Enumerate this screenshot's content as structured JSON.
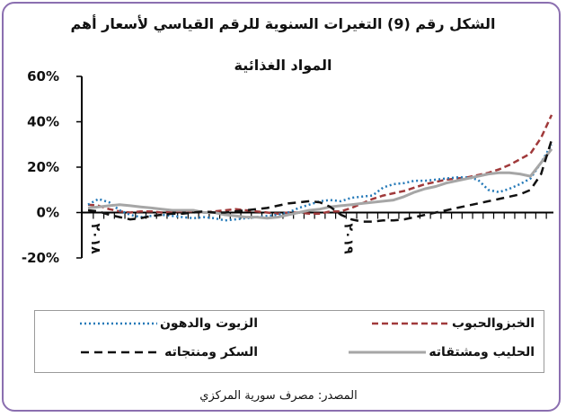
{
  "chart_data": {
    "type": "line",
    "title_line1": "الشكل رقم (9) التغيرات السنوية للرقم القياسي لأسعار أهم",
    "title_line2": "المواد الغذائية",
    "y_tick_labels": [
      "60%",
      "40%",
      "20%",
      "0%",
      "-20%"
    ],
    "y_ticks": [
      60,
      40,
      20,
      0,
      -20
    ],
    "ylim": [
      -20,
      60
    ],
    "x_tick_labels": [
      "٢٠١٨",
      "٢٠١٩"
    ],
    "x_label_index": [
      0,
      24
    ],
    "x_count": 45,
    "series": [
      {
        "name": "الخبزوالحبوب",
        "color": "#a0393a",
        "dash": "7,4",
        "values": [
          3.5,
          3.0,
          1.5,
          0.5,
          0.0,
          0.5,
          0.5,
          0.0,
          0.5,
          0.5,
          0.5,
          0.0,
          0.5,
          1.0,
          1.5,
          1.0,
          0.5,
          0.0,
          -0.5,
          0.0,
          0.0,
          -0.5,
          -0.5,
          0.5,
          0.5,
          2.0,
          4.0,
          6.0,
          7.5,
          8.5,
          9.5,
          11.0,
          12.5,
          13.5,
          14.5,
          15.0,
          15.5,
          16.5,
          17.5,
          19.0,
          21.0,
          23.5,
          26.0,
          33.0,
          43.0
        ]
      },
      {
        "name": "الزيوت والدهون",
        "color": "#2479b8",
        "dash": "2,3",
        "values": [
          3.5,
          6.0,
          4.5,
          1.0,
          -1.0,
          -2.0,
          -1.5,
          -1.0,
          -1.5,
          -2.0,
          -2.5,
          -2.0,
          -2.5,
          -3.5,
          -3.0,
          -2.5,
          -2.0,
          -1.5,
          -1.0,
          0.0,
          2.0,
          3.5,
          5.0,
          5.5,
          5.0,
          6.5,
          7.0,
          7.5,
          11.0,
          12.5,
          13.0,
          14.0,
          14.0,
          14.5,
          15.0,
          15.5,
          15.5,
          14.5,
          10.0,
          9.0,
          10.5,
          12.5,
          15.0,
          22.0,
          30.0
        ]
      },
      {
        "name": "الحليب ومشتقاته",
        "color": "#a6a6a6",
        "dash": "",
        "values": [
          2.0,
          2.5,
          3.0,
          3.5,
          3.0,
          2.5,
          2.0,
          1.5,
          1.0,
          1.0,
          1.0,
          0.0,
          0.0,
          -1.0,
          -1.5,
          -2.0,
          -2.0,
          -2.5,
          -2.0,
          -1.0,
          0.0,
          1.0,
          1.5,
          2.5,
          3.0,
          3.5,
          4.0,
          4.5,
          5.0,
          5.5,
          7.0,
          9.0,
          10.5,
          11.5,
          13.0,
          14.0,
          15.0,
          16.0,
          17.0,
          17.5,
          17.5,
          17.0,
          16.0,
          22.0,
          28.0
        ]
      },
      {
        "name": "السكر ومنتجاته",
        "color": "#111111",
        "dash": "9,6",
        "values": [
          1.0,
          0.5,
          -1.0,
          -2.0,
          -3.0,
          -2.5,
          -1.5,
          -1.0,
          -0.5,
          -0.5,
          0.0,
          0.5,
          0.0,
          0.0,
          0.5,
          1.0,
          1.5,
          2.0,
          3.0,
          4.0,
          4.5,
          5.0,
          4.5,
          2.5,
          -1.0,
          -3.0,
          -4.0,
          -4.0,
          -3.5,
          -3.5,
          -3.0,
          -2.0,
          -1.0,
          0.0,
          1.0,
          2.0,
          3.0,
          4.0,
          5.0,
          6.0,
          7.0,
          8.0,
          10.0,
          17.0,
          32.0
        ]
      }
    ],
    "legend_order": [
      0,
      1,
      2,
      3
    ],
    "source": "المصدر: مصرف سورية المركزي"
  }
}
